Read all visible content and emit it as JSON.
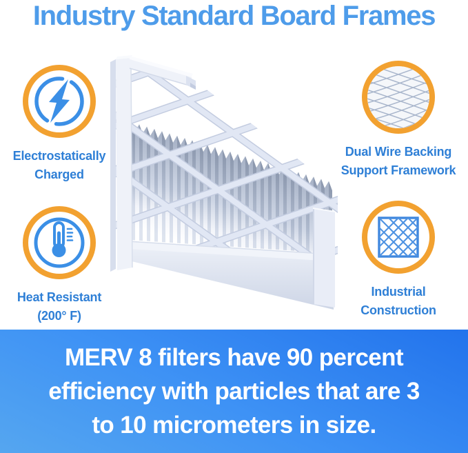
{
  "title": "Industry Standard Board Frames",
  "features": [
    {
      "name": "electrostatically-charged",
      "icon": "lightning-bolt-icon",
      "lines": [
        "Electrostatically",
        "Charged"
      ]
    },
    {
      "name": "dual-wire-backing",
      "icon": "wire-mesh-icon",
      "lines": [
        "Dual Wire Backing",
        "Support Framework"
      ]
    },
    {
      "name": "heat-resistant",
      "icon": "thermometer-icon",
      "lines": [
        "Heat Resistant",
        "(200° F)"
      ]
    },
    {
      "name": "industrial-construction",
      "icon": "diamond-lattice-icon",
      "lines": [
        "Industrial",
        "Construction"
      ]
    }
  ],
  "illustration": {
    "name": "pleated-air-filter",
    "description": "3D cutaway render of a pleated air filter with white board frame and diagonal lattice supports"
  },
  "banner": {
    "lines": [
      "MERV 8 filters have 90 percent",
      "efficiency with particles that are 3",
      "to 10 micrometers in size."
    ]
  },
  "colors": {
    "title_blue": "#4E9CEA",
    "label_blue": "#2E7FD6",
    "icon_blue": "#3B8FE6",
    "ring_orange": "#F2A130",
    "banner_gradient_start": "#2273EC",
    "banner_gradient_end": "#55A6F0",
    "banner_text": "#FFFFFF",
    "filter_frame": "#EFF2F9",
    "filter_pleat_shadow": "#9FABC0"
  }
}
